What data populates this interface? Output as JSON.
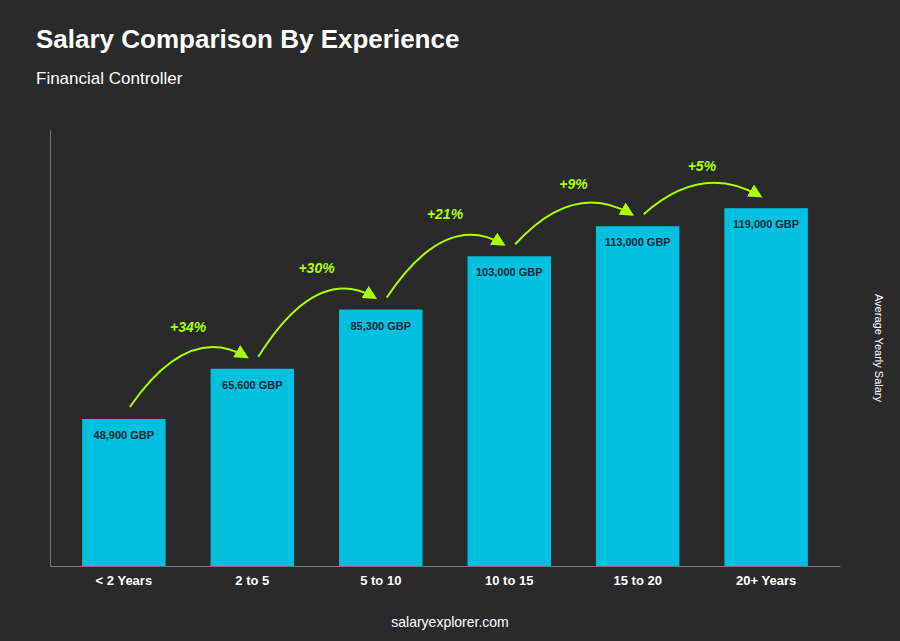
{
  "chart_data": {
    "type": "bar",
    "title": "Salary Comparison By Experience",
    "subtitle": "Financial Controller",
    "categories": [
      "< 2 Years",
      "2 to 5",
      "5 to 10",
      "10 to 15",
      "15 to 20",
      "20+ Years"
    ],
    "values": [
      48900,
      65600,
      85300,
      103000,
      113000,
      119000
    ],
    "value_labels": [
      "48,900 GBP",
      "65,600 GBP",
      "85,300 GBP",
      "103,000 GBP",
      "113,000 GBP",
      "119,000 GBP"
    ],
    "data_labels": true,
    "annotations": [
      "+34%",
      "+30%",
      "+21%",
      "+9%",
      "+5%"
    ],
    "ylabel": "Average Yearly Salary",
    "footer": "salaryexplorer.com",
    "color": "#00BFDF",
    "ylim": [
      0,
      145000
    ],
    "tick_labels": "x",
    "grid": false
  }
}
